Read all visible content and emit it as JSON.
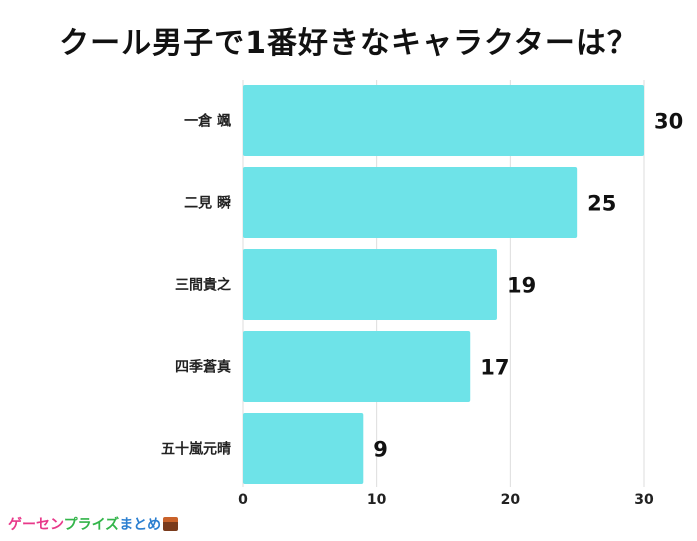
{
  "chart_data": {
    "type": "bar",
    "orientation": "horizontal",
    "title": "クール男子で1番好きなキャラクターは？",
    "categories": [
      "一倉 颯",
      "二見 瞬",
      "三間貴之",
      "四季蒼真",
      "五十嵐元晴"
    ],
    "values": [
      30,
      25,
      19,
      17,
      9
    ],
    "xlim": [
      0,
      30
    ],
    "xticks": [
      0,
      10,
      20,
      30
    ],
    "grid": true,
    "bar_color": "#6ee3e8"
  },
  "brand": {
    "part1": "ゲーセン",
    "part2": "プライズ",
    "part3": "まとめ"
  }
}
